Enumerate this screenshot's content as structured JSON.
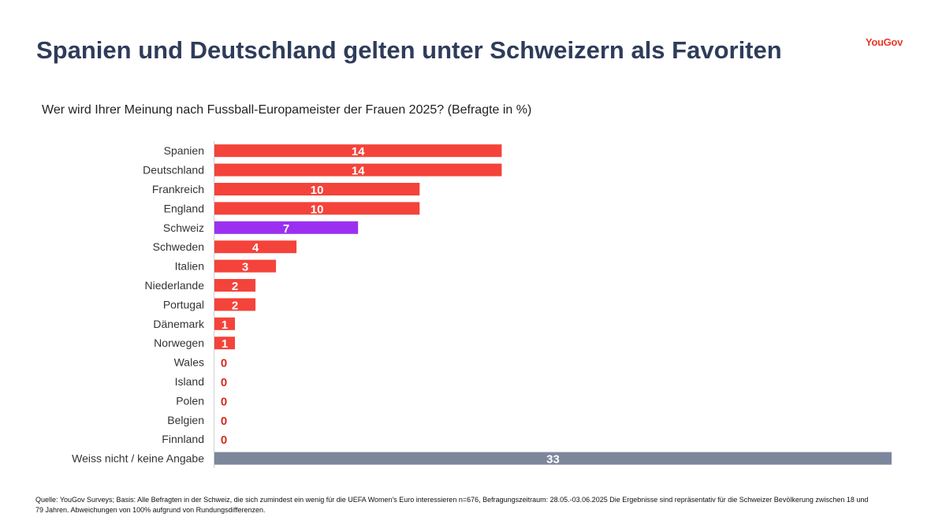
{
  "header": {
    "title": "Spanien und Deutschland gelten unter Schweizern als Favoriten",
    "logo": "YouGov"
  },
  "question": "Wer wird Ihrer Meinung nach Fussball-Europameister der Frauen 2025? (Befragte in %)",
  "source": "Quelle: YouGov Surveys; Basis: Alle Befragten in der Schweiz, die sich zumindest ein wenig für die UEFA Women's Euro interessieren n=676, Befragungszeitraum: 28.05.-03.06.2025 Die Ergebnisse sind repräsentativ für die Schweizer Bevölkerung zwischen 18 und 79 Jahren. Abweichungen von 100% aufgrund von Rundungsdifferenzen.",
  "colors": {
    "default": "#f4433a",
    "highlight": "#9b30f0",
    "unknown": "#7d879c",
    "zero_label": "#d62b21",
    "axis": "#d0d0d0"
  },
  "chart_data": {
    "type": "bar",
    "orientation": "horizontal",
    "title": "",
    "xlabel": "",
    "ylabel": "",
    "xlim": [
      0,
      33
    ],
    "grid": false,
    "legend": "none",
    "categories": [
      "Spanien",
      "Deutschland",
      "Frankreich",
      "England",
      "Schweiz",
      "Schweden",
      "Italien",
      "Niederlande",
      "Portugal",
      "Dänemark",
      "Norwegen",
      "Wales",
      "Island",
      "Polen",
      "Belgien",
      "Finnland",
      "Weiss nicht / keine Angabe"
    ],
    "values": [
      14,
      14,
      10,
      10,
      7,
      4,
      3,
      2,
      2,
      1,
      1,
      0,
      0,
      0,
      0,
      0,
      33
    ],
    "bar_color_keys": [
      "default",
      "default",
      "default",
      "default",
      "highlight",
      "default",
      "default",
      "default",
      "default",
      "default",
      "default",
      "default",
      "default",
      "default",
      "default",
      "default",
      "unknown"
    ]
  }
}
